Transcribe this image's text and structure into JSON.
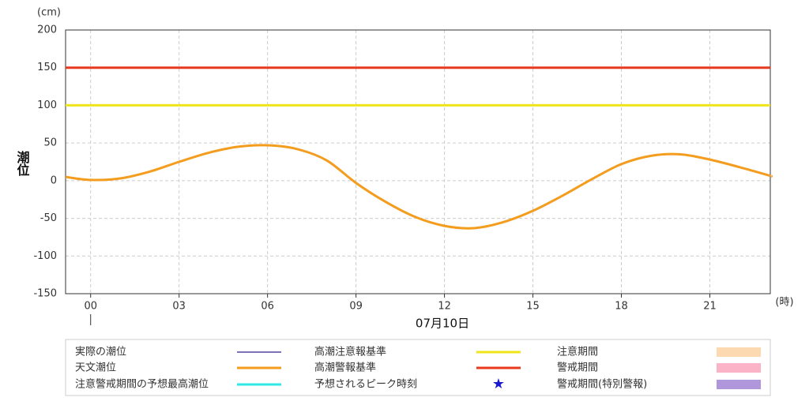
{
  "chart_data": {
    "type": "line",
    "y_unit": "(cm)",
    "y_label": "潮位",
    "x_unit": "(時)",
    "date_label": "07月10日",
    "x": [
      -0.85,
      0,
      1,
      2,
      3,
      4,
      5,
      6,
      7,
      8,
      9,
      10,
      11,
      12,
      13,
      14,
      15,
      16,
      17,
      18,
      19,
      20,
      21,
      22,
      23,
      23.05
    ],
    "series": [
      {
        "name": "天文潮位",
        "color": "#f39c1e",
        "values": [
          5,
          1,
          3,
          12,
          25,
          37,
          45,
          47,
          42,
          27,
          -3,
          -28,
          -48,
          -60,
          -63,
          -55,
          -40,
          -20,
          2,
          22,
          33,
          35,
          28,
          18,
          7,
          6
        ]
      }
    ],
    "thresholds": [
      {
        "name": "高潮注意報基準",
        "color": "#f0e51a",
        "value": 100
      },
      {
        "name": "高潮警報基準",
        "color": "#e8381e",
        "value": 150
      }
    ],
    "legend_extra": [
      {
        "name": "実際の潮位",
        "color": "#2d1e8a",
        "symbol": "line"
      },
      {
        "name": "注意警戒期間の予想最高潮位",
        "color": "#2ee8e8",
        "symbol": "line"
      },
      {
        "name": "予想されるピーク時刻",
        "color": "#1a1acc",
        "symbol": "star"
      },
      {
        "name": "注意期間",
        "color": "#fcd9b0",
        "symbol": "box"
      },
      {
        "name": "警戒期間",
        "color": "#fbb3c8",
        "symbol": "box"
      },
      {
        "name": "警戒期間(特別警報)",
        "color": "#b097dc",
        "symbol": "box"
      }
    ],
    "xlim": [
      -0.85,
      23.05
    ],
    "xticks": [
      {
        "value": 0,
        "label": "00"
      },
      {
        "value": 3,
        "label": "03"
      },
      {
        "value": 6,
        "label": "06"
      },
      {
        "value": 9,
        "label": "09"
      },
      {
        "value": 12,
        "label": "12"
      },
      {
        "value": 15,
        "label": "15"
      },
      {
        "value": 18,
        "label": "18"
      },
      {
        "value": 21,
        "label": "21"
      }
    ],
    "ylim": [
      -150,
      200
    ],
    "yticks": [
      -150,
      -100,
      -50,
      0,
      50,
      100,
      150,
      200
    ],
    "grid": true
  }
}
